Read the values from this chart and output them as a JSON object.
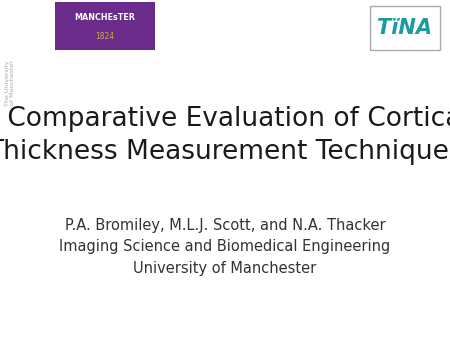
{
  "background_color": "#ffffff",
  "title_line1": "A Comparative Evaluation of Cortical",
  "title_line2": "Thickness Measurement Techniques",
  "subtitle_line1": "P.A. Bromiley, M.L.J. Scott, and N.A. Thacker",
  "subtitle_line2": "Imaging Science and Biomedical Engineering",
  "subtitle_line3": "University of Manchester",
  "manchester_badge_text1": "MANCHEsTER",
  "manchester_badge_text2": "1824",
  "manchester_badge_color": "#6b2b8a",
  "manchester_badge_text_color": "#ffffff",
  "manchester_year_color": "#c9a84c",
  "manchester_side_text": "The University\nof Manchester",
  "manchester_side_color": "#aaaaaa",
  "tina_text": "TïNA",
  "tina_color": "#1a9ba0",
  "tina_border_color": "#aaaaaa",
  "title_fontsize": 19,
  "subtitle_fontsize": 10.5,
  "title_color": "#1a1a1a",
  "subtitle_color": "#333333",
  "fig_width": 4.5,
  "fig_height": 3.38,
  "dpi": 100
}
